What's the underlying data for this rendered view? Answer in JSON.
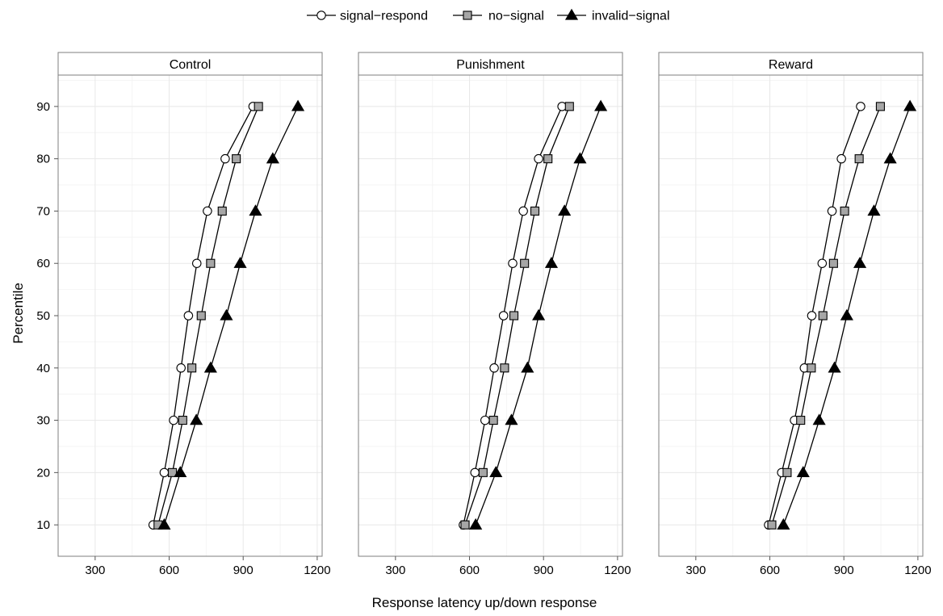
{
  "chart_data": {
    "type": "line",
    "xlabel": "Response latency up/down response",
    "ylabel": "Percentile",
    "xlim": [
      150,
      1220
    ],
    "ylim": [
      4,
      96
    ],
    "x_ticks": [
      300,
      600,
      900,
      1200
    ],
    "y_ticks": [
      10,
      20,
      30,
      40,
      50,
      60,
      70,
      80,
      90
    ],
    "grid": true,
    "legend_position": "top",
    "colors": {
      "line": "#000000",
      "square_fill": "#a6a6a6",
      "circle_fill": "#ffffff",
      "triangle_fill": "#000000",
      "strip_bg": "#ffffff",
      "panel_border": "#7f7f7f",
      "grid_major": "#e8e8e8",
      "grid_minor": "#f4f4f4"
    },
    "legend": [
      {
        "name": "signal−respond",
        "marker": "circle"
      },
      {
        "name": "no−signal",
        "marker": "square"
      },
      {
        "name": "invalid−signal",
        "marker": "triangle"
      }
    ],
    "panels": [
      {
        "title": "Control",
        "series": [
          {
            "name": "signal−respond",
            "marker": "circle",
            "points": [
              [
                535,
                10
              ],
              [
                580,
                20
              ],
              [
                618,
                30
              ],
              [
                648,
                40
              ],
              [
                678,
                50
              ],
              [
                712,
                60
              ],
              [
                755,
                70
              ],
              [
                827,
                80
              ],
              [
                940,
                90
              ]
            ]
          },
          {
            "name": "no−signal",
            "marker": "square",
            "points": [
              [
                555,
                10
              ],
              [
                613,
                20
              ],
              [
                655,
                30
              ],
              [
                692,
                40
              ],
              [
                730,
                50
              ],
              [
                768,
                60
              ],
              [
                815,
                70
              ],
              [
                872,
                80
              ],
              [
                962,
                90
              ]
            ]
          },
          {
            "name": "invalid−signal",
            "marker": "triangle",
            "points": [
              [
                580,
                10
              ],
              [
                645,
                20
              ],
              [
                710,
                30
              ],
              [
                768,
                40
              ],
              [
                832,
                50
              ],
              [
                888,
                60
              ],
              [
                950,
                70
              ],
              [
                1020,
                80
              ],
              [
                1122,
                90
              ]
            ]
          }
        ]
      },
      {
        "title": "Punishment",
        "series": [
          {
            "name": "signal−respond",
            "marker": "circle",
            "points": [
              [
                575,
                10
              ],
              [
                622,
                20
              ],
              [
                663,
                30
              ],
              [
                700,
                40
              ],
              [
                738,
                50
              ],
              [
                775,
                60
              ],
              [
                818,
                70
              ],
              [
                880,
                80
              ],
              [
                975,
                90
              ]
            ]
          },
          {
            "name": "no−signal",
            "marker": "square",
            "points": [
              [
                582,
                10
              ],
              [
                655,
                20
              ],
              [
                697,
                30
              ],
              [
                742,
                40
              ],
              [
                780,
                50
              ],
              [
                823,
                60
              ],
              [
                865,
                70
              ],
              [
                918,
                80
              ],
              [
                1005,
                90
              ]
            ]
          },
          {
            "name": "invalid−signal",
            "marker": "triangle",
            "points": [
              [
                625,
                10
              ],
              [
                707,
                20
              ],
              [
                770,
                30
              ],
              [
                835,
                40
              ],
              [
                880,
                50
              ],
              [
                932,
                60
              ],
              [
                985,
                70
              ],
              [
                1048,
                80
              ],
              [
                1132,
                90
              ]
            ]
          }
        ]
      },
      {
        "title": "Reward",
        "series": [
          {
            "name": "signal−respond",
            "marker": "circle",
            "points": [
              [
                595,
                10
              ],
              [
                648,
                20
              ],
              [
                700,
                30
              ],
              [
                740,
                40
              ],
              [
                770,
                50
              ],
              [
                812,
                60
              ],
              [
                852,
                70
              ],
              [
                890,
                80
              ],
              [
                968,
                90
              ]
            ]
          },
          {
            "name": "no−signal",
            "marker": "square",
            "points": [
              [
                608,
                10
              ],
              [
                670,
                20
              ],
              [
                725,
                30
              ],
              [
                768,
                40
              ],
              [
                815,
                50
              ],
              [
                858,
                60
              ],
              [
                903,
                70
              ],
              [
                962,
                80
              ],
              [
                1048,
                90
              ]
            ]
          },
          {
            "name": "invalid−signal",
            "marker": "triangle",
            "points": [
              [
                655,
                10
              ],
              [
                735,
                20
              ],
              [
                800,
                30
              ],
              [
                862,
                40
              ],
              [
                912,
                50
              ],
              [
                965,
                60
              ],
              [
                1022,
                70
              ],
              [
                1088,
                80
              ],
              [
                1168,
                90
              ]
            ]
          }
        ]
      }
    ]
  }
}
